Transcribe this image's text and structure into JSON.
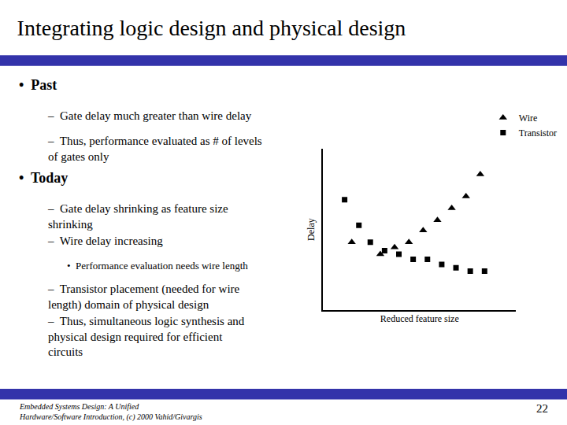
{
  "chart_data": {
    "type": "scatter",
    "title": "Integrating logic design and physical design",
    "xlabel": "Reduced feature size",
    "ylabel": "Delay",
    "series": [
      {
        "name": "Wire",
        "color": "#000000",
        "marker": "triangle-up",
        "x": [
          1.5,
          3.5,
          4.5,
          5.5,
          6.5,
          7.5,
          8.5,
          9.5,
          10.5
        ],
        "values": [
          3.5,
          2.8,
          3.2,
          3.5,
          4.2,
          4.8,
          5.5,
          6.2,
          7.5
        ]
      },
      {
        "name": "Transistor",
        "color": "#000000",
        "marker": "square",
        "x": [
          1.0,
          2.0,
          2.8,
          3.8,
          4.8,
          5.8,
          6.8,
          7.8,
          8.8,
          9.8,
          10.8
        ],
        "values": [
          6.0,
          4.5,
          3.5,
          3.0,
          2.8,
          2.5,
          2.5,
          2.2,
          2.0,
          1.8,
          1.8
        ]
      }
    ],
    "xlim": [
      -0.5,
      13
    ],
    "ylim": [
      -0.5,
      9
    ],
    "tick_labels": false,
    "grid": false,
    "legend": "upper right",
    "annotations": [
      "•  Past",
      "–  Gate delay much greater than wire delay",
      "–  Thus, performance evaluated as # of levels\nof gates only",
      "•  Today",
      "–  Gate delay shrinking as feature size\nshrinking",
      "–  Wire delay increasing",
      "•  Performance evaluation needs wire length",
      "–  Transistor placement (needed for wire\nlength) domain of physical design",
      "–  Thus, simultaneous logic synthesis and\nphysical design required for efficient\ncircuits",
      "Embedded Systems Design: A Unified\nHardware/Software Introduction, (c) 2000 Vahid/Givargis",
      "22"
    ]
  }
}
